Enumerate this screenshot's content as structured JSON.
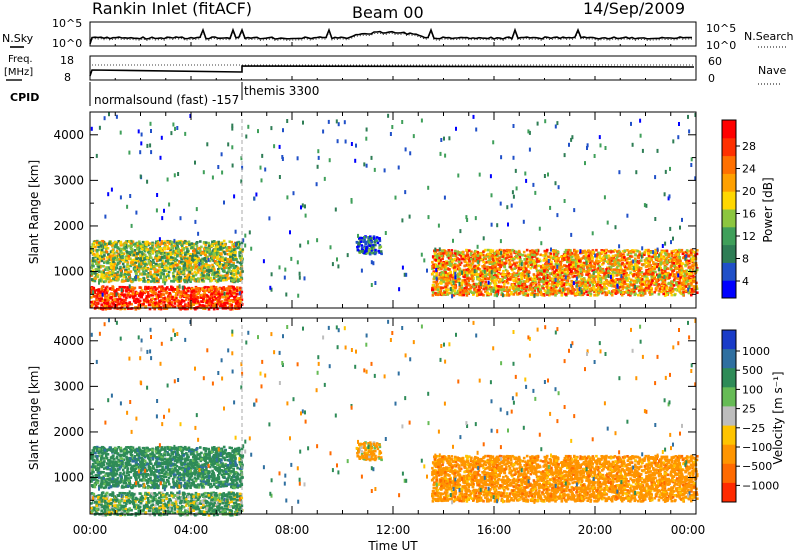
{
  "header": {
    "station": "Rankin Inlet (fitACF)",
    "beam": "Beam 00",
    "date": "14/Sep/2009"
  },
  "summary": {
    "nsky_label": "N.Sky",
    "nsky_ticks": [
      "10^5",
      "10^0"
    ],
    "nsearch_label": "N.Search",
    "nsearch_ticks": [
      "10^5",
      "10^0"
    ],
    "freq_label_top": "Freq.",
    "freq_label_bottom": "[MHz]",
    "freq_ticks": [
      "18",
      "8"
    ],
    "nave_label": "Nave",
    "nave_ticks": [
      "60",
      "0"
    ],
    "cpid_label": "CPID",
    "cpid_segments": [
      {
        "label": "normalsound (fast) -157",
        "start_hour": 0,
        "end_hour": 6
      },
      {
        "label": "themis 3300",
        "start_hour": 6,
        "end_hour": 24
      }
    ]
  },
  "colorbars": {
    "power": {
      "title": "Power [dB]",
      "ticks": [
        "28",
        "24",
        "20",
        "16",
        "12",
        "8",
        "4"
      ],
      "colors": [
        "#0000ff",
        "#2050c8",
        "#2e7d55",
        "#3f9f5a",
        "#8cc63f",
        "#ffd700",
        "#ffa000",
        "#ff7000",
        "#ff3000",
        "#ff0000"
      ]
    },
    "velocity": {
      "title": "Velocity [m s⁻¹]",
      "ticks": [
        "1000",
        "500",
        "100",
        "25",
        "−25",
        "−100",
        "−500",
        "−1000"
      ],
      "colors": [
        "#1a3cc8",
        "#2f6fa0",
        "#2e8b57",
        "#66bb55",
        "#bdbdbd",
        "#ffc400",
        "#ff9500",
        "#ff6a00",
        "#ff2a00"
      ]
    }
  },
  "axes": {
    "ylabel": "Slant Range [km]",
    "xlabel": "Time UT"
  },
  "chart_data": {
    "type": "heatmap",
    "panels": [
      {
        "name": "Power",
        "variable": "Power [dB]",
        "range": [
          0,
          30
        ]
      },
      {
        "name": "Velocity",
        "variable": "Velocity [m s⁻¹]",
        "range": [
          -1000,
          1000
        ]
      }
    ],
    "x_ticks": [
      "00:00",
      "04:00",
      "08:00",
      "12:00",
      "16:00",
      "20:00",
      "00:00"
    ],
    "x_range_hours": [
      0,
      24
    ],
    "y_ticks": [
      1000,
      2000,
      3000,
      4000
    ],
    "y_range_km": [
      200,
      4500
    ],
    "echo_regions": [
      {
        "t_start": 0.0,
        "t_end": 6.0,
        "range_km": [
          200,
          700
        ],
        "power_db": 26,
        "velocity": 150
      },
      {
        "t_start": 0.0,
        "t_end": 6.0,
        "range_km": [
          800,
          1700
        ],
        "power_db": 14,
        "velocity": 300
      },
      {
        "t_start": 10.5,
        "t_end": 11.5,
        "range_km": [
          1400,
          1800
        ],
        "power_db": 6,
        "velocity": -150
      },
      {
        "t_start": 13.5,
        "t_end": 24.0,
        "range_km": [
          500,
          1500
        ],
        "power_db": 20,
        "velocity": -300
      }
    ]
  }
}
